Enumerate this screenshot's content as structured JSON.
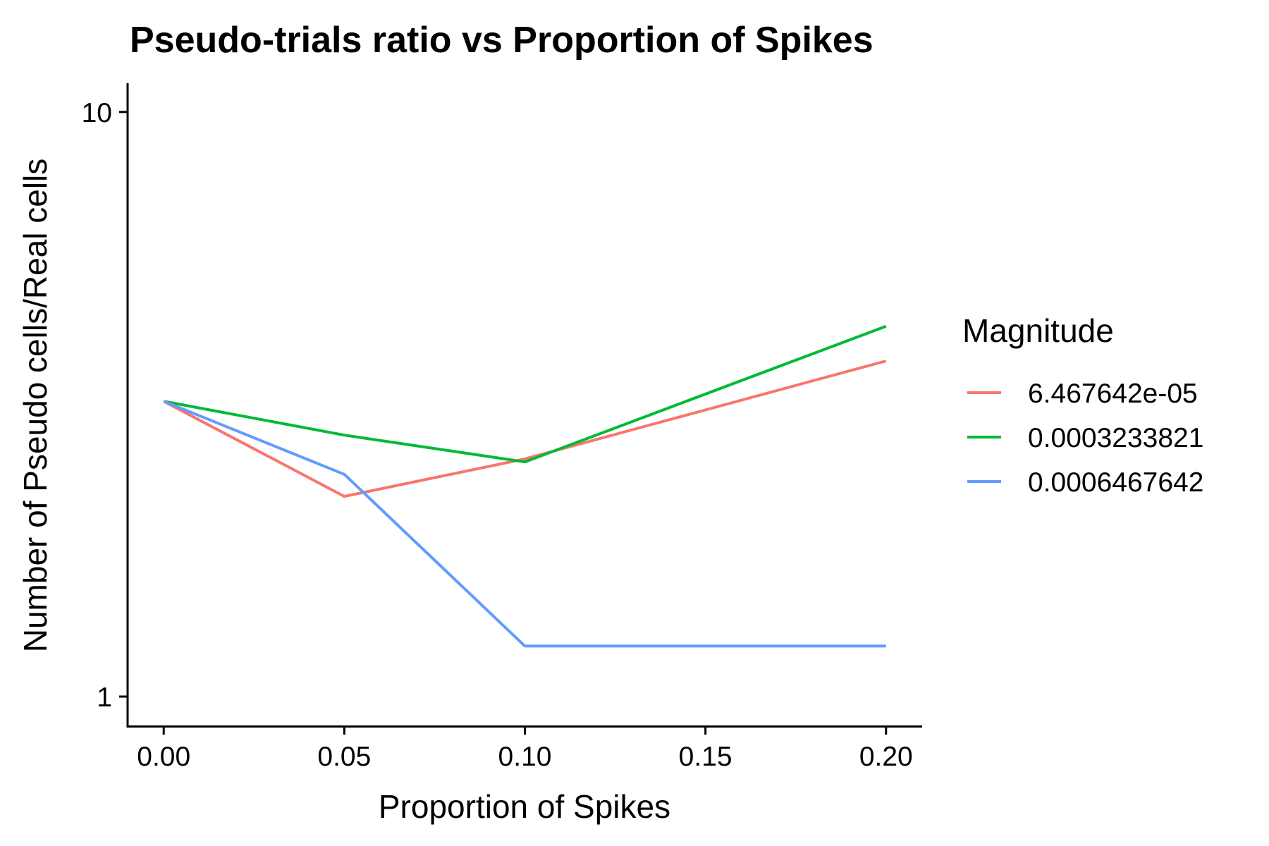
{
  "chart_data": {
    "type": "line",
    "title": "Pseudo-trials ratio vs Proportion of Spikes",
    "xlabel": "Proportion of Spikes",
    "ylabel": "Number of Pseudo cells/Real cells",
    "x": [
      0.0,
      0.05,
      0.1,
      0.2
    ],
    "xlim": [
      -0.01,
      0.21
    ],
    "xticks": [
      0.0,
      0.05,
      0.1,
      0.15,
      0.2
    ],
    "xtick_labels": [
      "0.00",
      "0.05",
      "0.10",
      "0.15",
      "0.20"
    ],
    "yscale": "log",
    "ylim": [
      0.89,
      11.2
    ],
    "yticks": [
      1,
      10
    ],
    "ytick_labels": [
      "1",
      "10"
    ],
    "grid": false,
    "legend": {
      "title": "Magnitude",
      "placement": "right"
    },
    "series": [
      {
        "name": "6.467642e-05",
        "color": "#F8766D",
        "values": [
          3.2,
          2.2,
          2.55,
          3.75
        ]
      },
      {
        "name": "0.0003233821",
        "color": "#00BA38",
        "values": [
          3.2,
          2.8,
          2.52,
          4.3
        ]
      },
      {
        "name": "0.0006467642",
        "color": "#619CFF",
        "values": [
          3.2,
          2.4,
          1.22,
          1.22
        ]
      }
    ]
  }
}
